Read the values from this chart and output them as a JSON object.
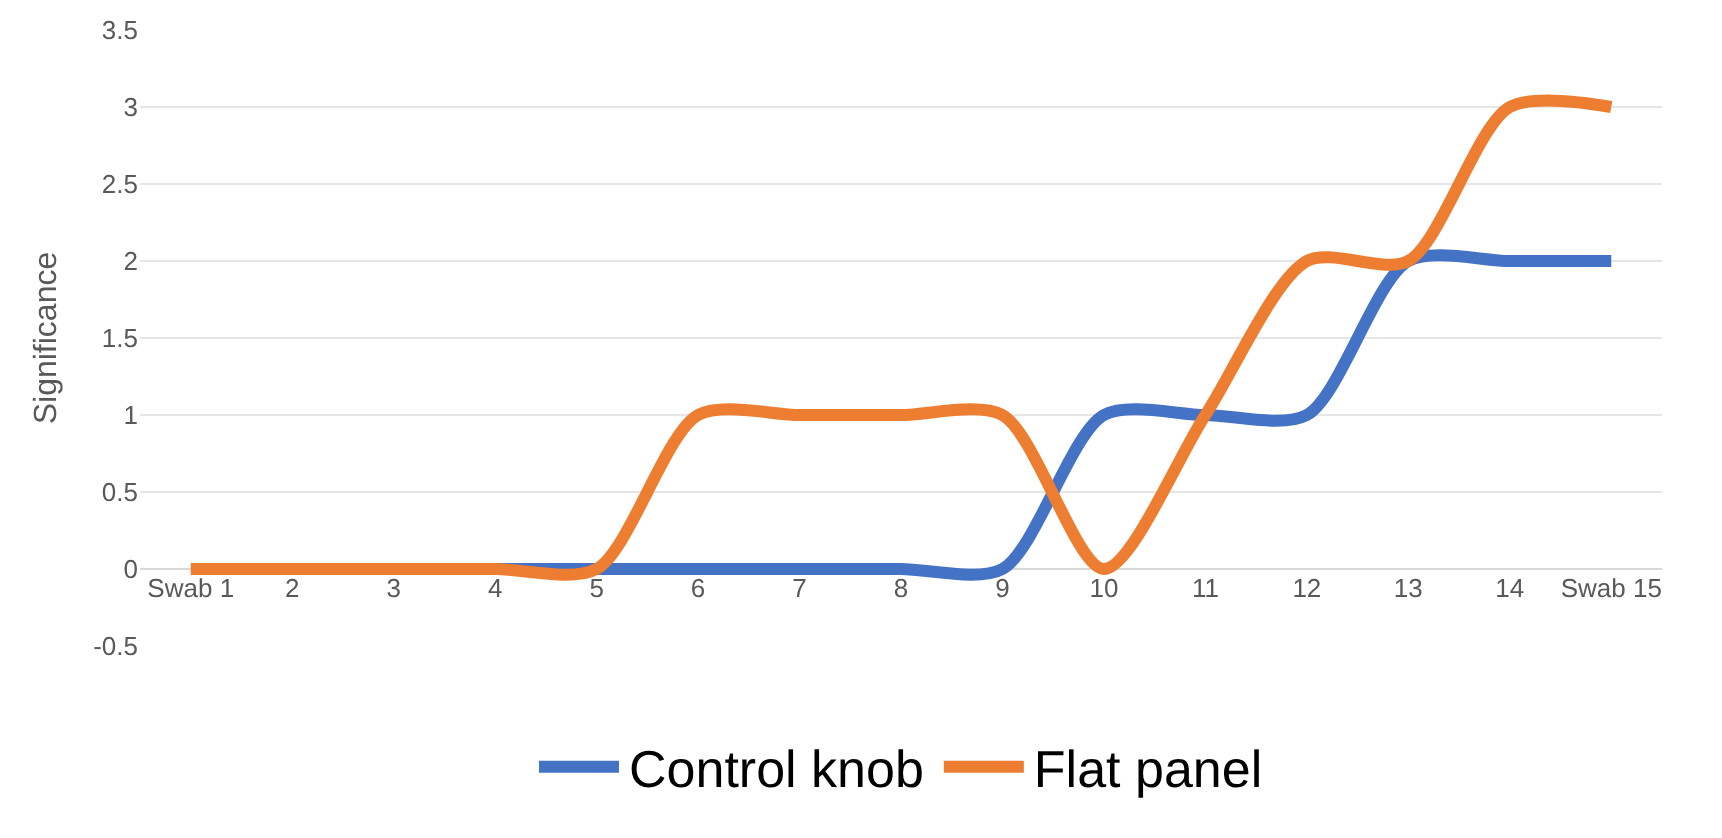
{
  "chart_data": {
    "type": "line",
    "ylabel": "Significance",
    "categories": [
      "Swab 1",
      "2",
      "3",
      "4",
      "5",
      "6",
      "7",
      "8",
      "9",
      "10",
      "11",
      "12",
      "13",
      "14",
      "Swab 15"
    ],
    "series": [
      {
        "name": "Control knob",
        "color": "#4472c4",
        "values": [
          null,
          null,
          null,
          0,
          0,
          0,
          0,
          0,
          0,
          1,
          1,
          1,
          2,
          2,
          2
        ]
      },
      {
        "name": "Flat panel",
        "color": "#ed7d31",
        "values": [
          0,
          0,
          0,
          0,
          0,
          1,
          1,
          1,
          1,
          0,
          1,
          2,
          2,
          3,
          3
        ]
      }
    ],
    "ylim": [
      -0.5,
      3.5
    ],
    "yticks": [
      -0.5,
      0,
      0.5,
      1,
      1.5,
      2,
      2.5,
      3,
      3.5
    ],
    "grid": "y",
    "legend": "bottom",
    "marker": "none",
    "line_style": "solid"
  }
}
